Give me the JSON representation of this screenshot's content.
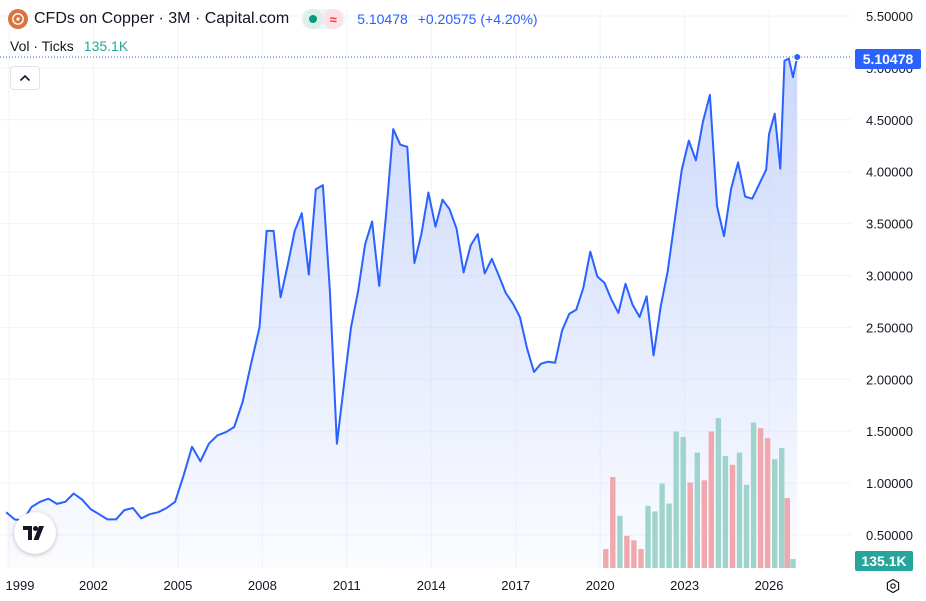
{
  "legend": {
    "title": "CFDs on Copper · 3M · Capital.com",
    "price": "5.10478",
    "change": "+0.20575 (+4.20%)",
    "vol_label": "Vol · Ticks",
    "vol_value": "135.1K"
  },
  "price_scale": {
    "last_price_label": "5.10478",
    "last_volume_label": "135.1K"
  },
  "colors": {
    "line": "#2962ff",
    "area_top": "#c9d6fb",
    "volume_up": "#9fd4cc",
    "volume_down": "#f0a8ae",
    "accent": "#2962ff",
    "volume_badge": "#26a69a"
  },
  "icons": {
    "logo": "copper-symbol-icon",
    "collapse": "chevron-up-icon",
    "brand": "tradingview-logo-icon",
    "settings": "gear-icon"
  },
  "chart_data": {
    "type": "line",
    "title": "CFDs on Copper · 3M · Capital.com",
    "xlabel": "",
    "ylabel": "",
    "x_ticks": [
      "1999",
      "2002",
      "2005",
      "2008",
      "2011",
      "2014",
      "2017",
      "2020",
      "2023",
      "2026"
    ],
    "y_ticks": [
      "0.50000",
      "1.00000",
      "1.50000",
      "2.00000",
      "2.50000",
      "3.00000",
      "3.50000",
      "4.00000",
      "4.50000",
      "5.00000",
      "5.50000"
    ],
    "ylim": [
      0.35,
      5.62
    ],
    "xlim": [
      1998.9,
      2026.6
    ],
    "grid": true,
    "last_value": 5.10478,
    "price_series": [
      {
        "x": 1998.9,
        "y": 0.72
      },
      {
        "x": 1999.2,
        "y": 0.65
      },
      {
        "x": 1999.5,
        "y": 0.64
      },
      {
        "x": 1999.8,
        "y": 0.77
      },
      {
        "x": 2000.1,
        "y": 0.82
      },
      {
        "x": 2000.4,
        "y": 0.85
      },
      {
        "x": 2000.7,
        "y": 0.8
      },
      {
        "x": 2001.0,
        "y": 0.82
      },
      {
        "x": 2001.3,
        "y": 0.9
      },
      {
        "x": 2001.6,
        "y": 0.84
      },
      {
        "x": 2001.9,
        "y": 0.75
      },
      {
        "x": 2002.2,
        "y": 0.7
      },
      {
        "x": 2002.5,
        "y": 0.65
      },
      {
        "x": 2002.8,
        "y": 0.65
      },
      {
        "x": 2003.1,
        "y": 0.74
      },
      {
        "x": 2003.4,
        "y": 0.76
      },
      {
        "x": 2003.7,
        "y": 0.66
      },
      {
        "x": 2004.0,
        "y": 0.7
      },
      {
        "x": 2004.3,
        "y": 0.72
      },
      {
        "x": 2004.6,
        "y": 0.76
      },
      {
        "x": 2004.9,
        "y": 0.82
      },
      {
        "x": 2005.2,
        "y": 1.07
      },
      {
        "x": 2005.5,
        "y": 1.35
      },
      {
        "x": 2005.8,
        "y": 1.21
      },
      {
        "x": 2006.1,
        "y": 1.38
      },
      {
        "x": 2006.4,
        "y": 1.46
      },
      {
        "x": 2006.7,
        "y": 1.49
      },
      {
        "x": 2007.0,
        "y": 1.54
      },
      {
        "x": 2007.3,
        "y": 1.78
      },
      {
        "x": 2007.6,
        "y": 2.15
      },
      {
        "x": 2007.9,
        "y": 2.5
      },
      {
        "x": 2008.15,
        "y": 3.43
      },
      {
        "x": 2008.4,
        "y": 3.43
      },
      {
        "x": 2008.65,
        "y": 2.79
      },
      {
        "x": 2008.9,
        "y": 3.1
      },
      {
        "x": 2009.15,
        "y": 3.43
      },
      {
        "x": 2009.4,
        "y": 3.6
      },
      {
        "x": 2009.65,
        "y": 3.01
      },
      {
        "x": 2009.9,
        "y": 3.83
      },
      {
        "x": 2010.15,
        "y": 3.87
      },
      {
        "x": 2010.4,
        "y": 2.85
      },
      {
        "x": 2010.65,
        "y": 1.38
      },
      {
        "x": 2010.9,
        "y": 1.95
      },
      {
        "x": 2011.15,
        "y": 2.5
      },
      {
        "x": 2011.4,
        "y": 2.85
      },
      {
        "x": 2011.65,
        "y": 3.3
      },
      {
        "x": 2011.9,
        "y": 3.52
      },
      {
        "x": 2012.15,
        "y": 2.9
      },
      {
        "x": 2012.4,
        "y": 3.6
      },
      {
        "x": 2012.65,
        "y": 4.41
      },
      {
        "x": 2012.9,
        "y": 4.26
      },
      {
        "x": 2013.15,
        "y": 4.24
      },
      {
        "x": 2013.4,
        "y": 3.12
      },
      {
        "x": 2013.65,
        "y": 3.4
      },
      {
        "x": 2013.9,
        "y": 3.8
      },
      {
        "x": 2014.15,
        "y": 3.47
      },
      {
        "x": 2014.4,
        "y": 3.73
      },
      {
        "x": 2014.65,
        "y": 3.64
      },
      {
        "x": 2014.9,
        "y": 3.45
      },
      {
        "x": 2015.15,
        "y": 3.03
      },
      {
        "x": 2015.4,
        "y": 3.29
      },
      {
        "x": 2015.65,
        "y": 3.4
      },
      {
        "x": 2015.9,
        "y": 3.02
      },
      {
        "x": 2016.15,
        "y": 3.16
      },
      {
        "x": 2016.4,
        "y": 3.0
      },
      {
        "x": 2016.65,
        "y": 2.83
      },
      {
        "x": 2016.9,
        "y": 2.73
      },
      {
        "x": 2017.15,
        "y": 2.6
      },
      {
        "x": 2017.4,
        "y": 2.3
      },
      {
        "x": 2017.65,
        "y": 2.07
      },
      {
        "x": 2017.9,
        "y": 2.15
      },
      {
        "x": 2018.15,
        "y": 2.17
      },
      {
        "x": 2018.4,
        "y": 2.16
      },
      {
        "x": 2018.65,
        "y": 2.47
      },
      {
        "x": 2018.9,
        "y": 2.63
      },
      {
        "x": 2019.15,
        "y": 2.67
      },
      {
        "x": 2019.4,
        "y": 2.88
      },
      {
        "x": 2019.65,
        "y": 3.23
      },
      {
        "x": 2019.9,
        "y": 2.99
      },
      {
        "x": 2020.15,
        "y": 2.93
      },
      {
        "x": 2020.4,
        "y": 2.77
      },
      {
        "x": 2020.65,
        "y": 2.64
      },
      {
        "x": 2020.9,
        "y": 2.92
      },
      {
        "x": 2021.15,
        "y": 2.72
      },
      {
        "x": 2021.4,
        "y": 2.6
      },
      {
        "x": 2021.65,
        "y": 2.8
      },
      {
        "x": 2021.9,
        "y": 2.23
      },
      {
        "x": 2022.15,
        "y": 2.7
      },
      {
        "x": 2022.4,
        "y": 3.04
      },
      {
        "x": 2022.65,
        "y": 3.53
      },
      {
        "x": 2022.9,
        "y": 4.02
      },
      {
        "x": 2023.15,
        "y": 4.3
      },
      {
        "x": 2023.4,
        "y": 4.11
      },
      {
        "x": 2023.65,
        "y": 4.48
      },
      {
        "x": 2023.9,
        "y": 4.74
      },
      {
        "x": 2024.15,
        "y": 3.67
      },
      {
        "x": 2024.4,
        "y": 3.38
      },
      {
        "x": 2024.65,
        "y": 3.83
      },
      {
        "x": 2024.9,
        "y": 4.09
      },
      {
        "x": 2025.15,
        "y": 3.76
      },
      {
        "x": 2025.4,
        "y": 3.74
      },
      {
        "x": 2025.65,
        "y": 3.88
      },
      {
        "x": 2025.9,
        "y": 4.02
      },
      {
        "x": 2026.0,
        "y": 4.36
      },
      {
        "x": 2026.2,
        "y": 4.56
      },
      {
        "x": 2026.4,
        "y": 4.03
      },
      {
        "x": 2026.55,
        "y": 5.07
      },
      {
        "x": 2026.7,
        "y": 5.09
      },
      {
        "x": 2026.85,
        "y": 4.91
      },
      {
        "x": 2027.0,
        "y": 5.10478
      }
    ],
    "volume_series": [
      {
        "x": 2020.2,
        "v": 0.17,
        "dir": "down"
      },
      {
        "x": 2020.45,
        "v": 0.82,
        "dir": "down"
      },
      {
        "x": 2020.7,
        "v": 0.47,
        "dir": "up"
      },
      {
        "x": 2020.95,
        "v": 0.29,
        "dir": "down"
      },
      {
        "x": 2021.2,
        "v": 0.25,
        "dir": "down"
      },
      {
        "x": 2021.45,
        "v": 0.17,
        "dir": "down"
      },
      {
        "x": 2021.7,
        "v": 0.56,
        "dir": "up"
      },
      {
        "x": 2021.95,
        "v": 0.51,
        "dir": "up"
      },
      {
        "x": 2022.2,
        "v": 0.76,
        "dir": "up"
      },
      {
        "x": 2022.45,
        "v": 0.58,
        "dir": "up"
      },
      {
        "x": 2022.7,
        "v": 1.23,
        "dir": "up"
      },
      {
        "x": 2022.95,
        "v": 1.18,
        "dir": "up"
      },
      {
        "x": 2023.2,
        "v": 0.77,
        "dir": "down"
      },
      {
        "x": 2023.45,
        "v": 1.04,
        "dir": "up"
      },
      {
        "x": 2023.7,
        "v": 0.79,
        "dir": "down"
      },
      {
        "x": 2023.95,
        "v": 1.23,
        "dir": "down"
      },
      {
        "x": 2024.2,
        "v": 1.35,
        "dir": "up"
      },
      {
        "x": 2024.45,
        "v": 1.01,
        "dir": "up"
      },
      {
        "x": 2024.7,
        "v": 0.93,
        "dir": "down"
      },
      {
        "x": 2024.95,
        "v": 1.04,
        "dir": "up"
      },
      {
        "x": 2025.2,
        "v": 0.75,
        "dir": "up"
      },
      {
        "x": 2025.45,
        "v": 1.31,
        "dir": "up"
      },
      {
        "x": 2025.7,
        "v": 1.26,
        "dir": "down"
      },
      {
        "x": 2025.95,
        "v": 1.17,
        "dir": "down"
      },
      {
        "x": 2026.2,
        "v": 0.98,
        "dir": "up"
      },
      {
        "x": 2026.45,
        "v": 1.08,
        "dir": "up"
      },
      {
        "x": 2026.65,
        "v": 0.63,
        "dir": "down"
      },
      {
        "x": 2026.85,
        "v": 0.08,
        "dir": "up"
      }
    ]
  }
}
